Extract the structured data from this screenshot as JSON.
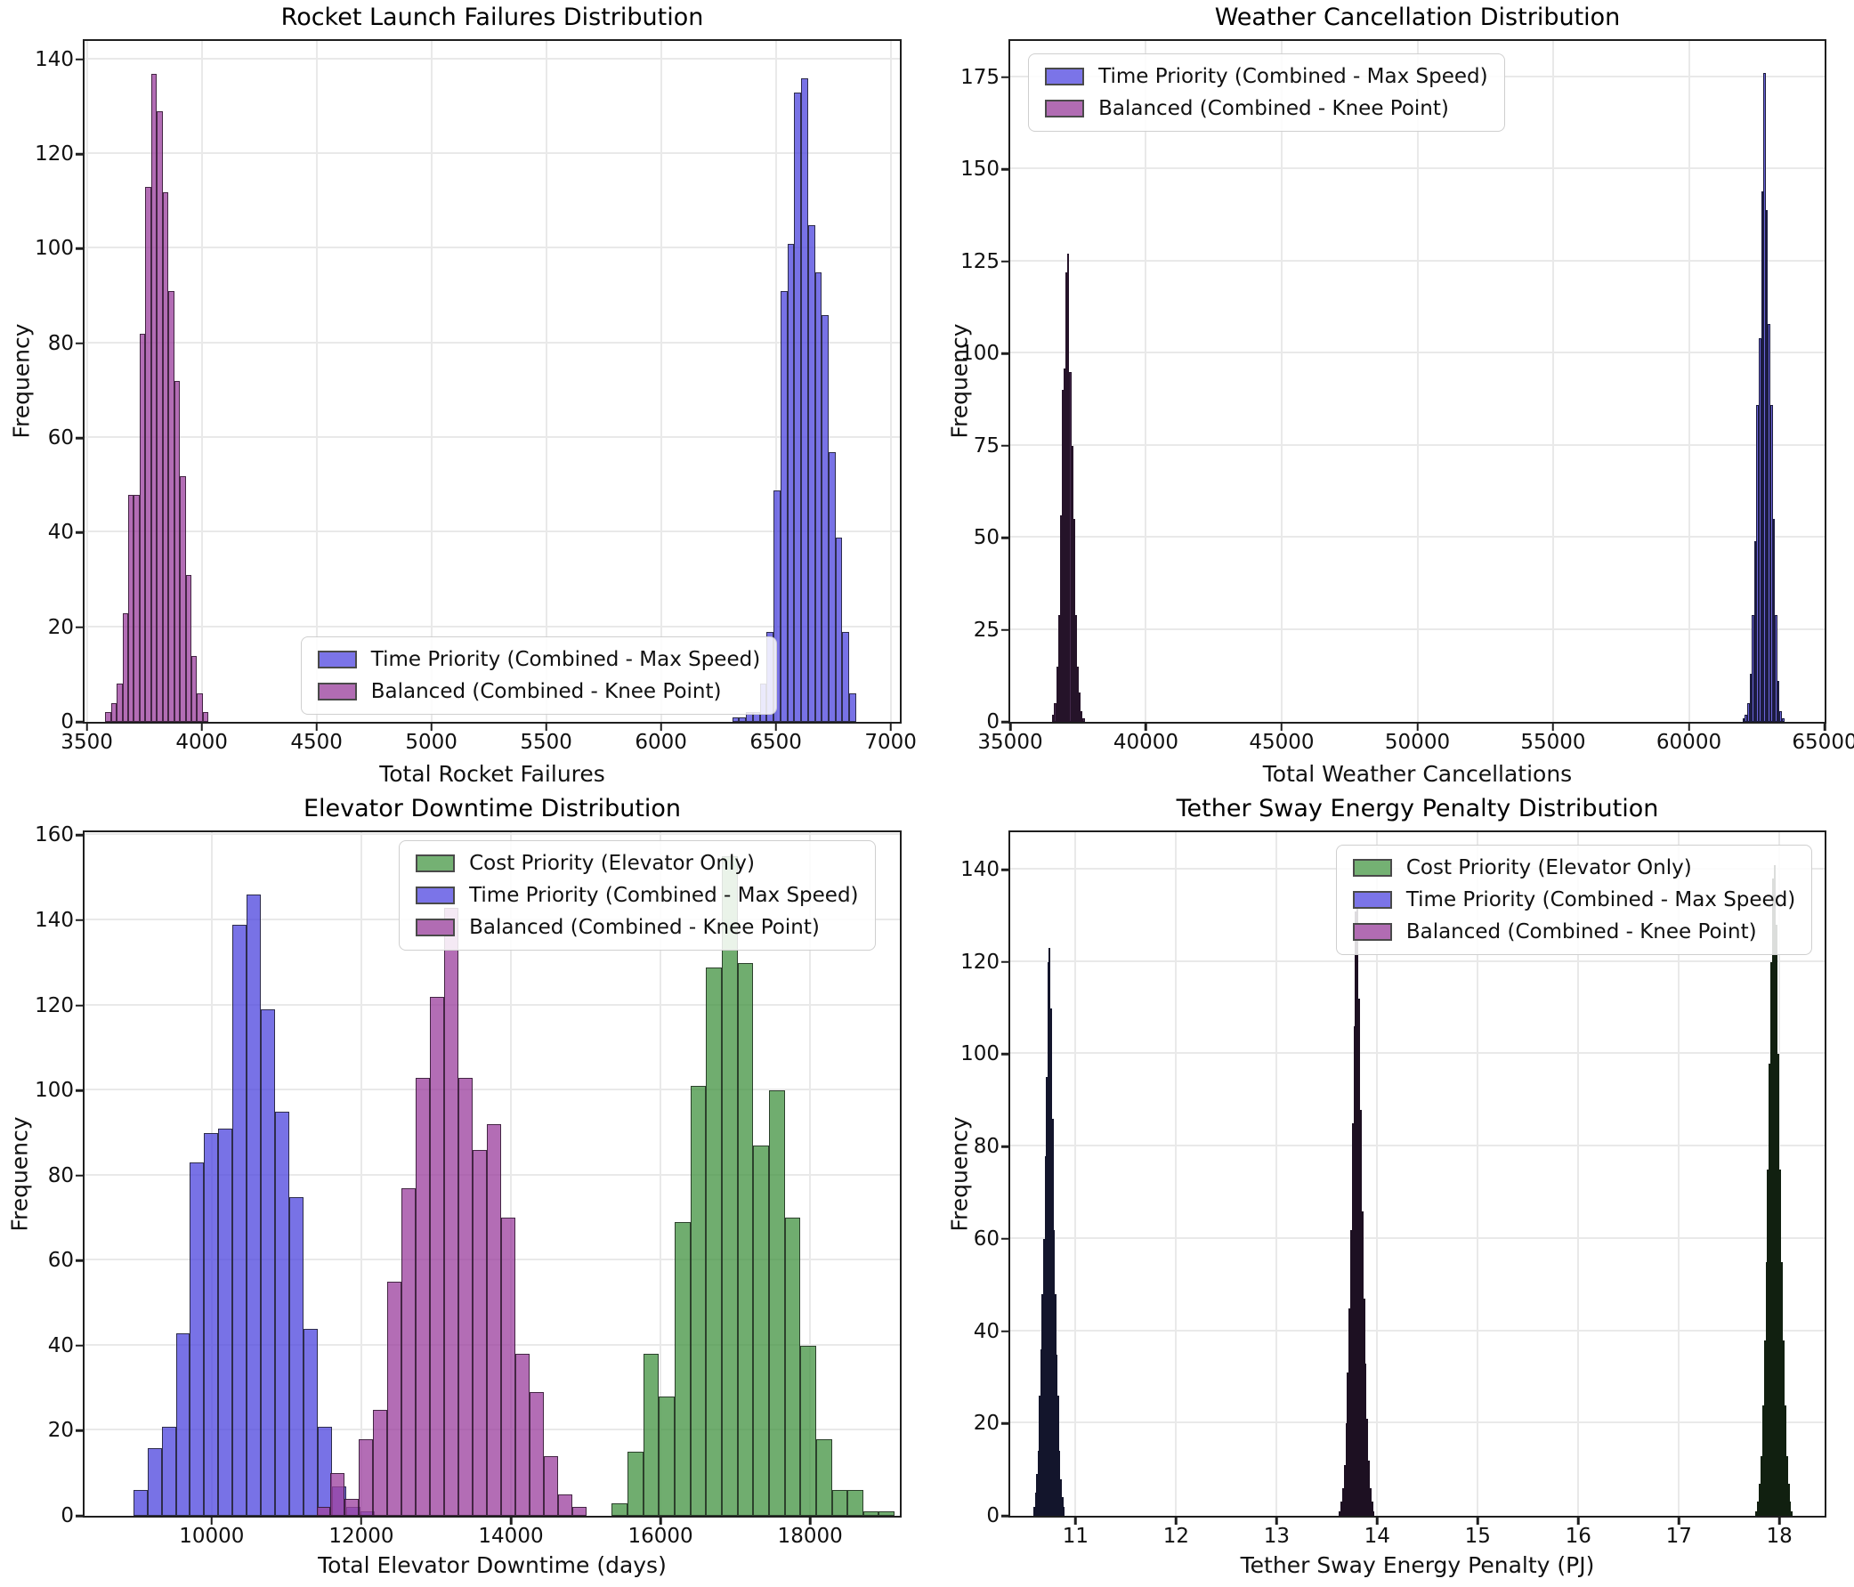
{
  "figure": {
    "background": "#ffffff"
  },
  "palette": {
    "blue": "#7b74e8",
    "purple": "#b16cb3",
    "green": "#74b173"
  },
  "chart_data": [
    {
      "type": "bar",
      "subtype": "histogram",
      "title": "Rocket Launch Failures Distribution",
      "xlabel": "Total Rocket Failures",
      "ylabel": "Frequency",
      "xlim": [
        3490,
        7040
      ],
      "ylim": [
        0,
        143.9
      ],
      "xticks": [
        3500,
        4000,
        4500,
        5000,
        5500,
        6000,
        6500,
        7000
      ],
      "yticks": [
        0,
        20,
        40,
        60,
        80,
        100,
        120,
        140
      ],
      "grid": true,
      "legend": {
        "pos": {
          "left": "26.5%",
          "bottom": "1%"
        },
        "items": [
          {
            "label": "Time Priority (Combined - Max Speed)",
            "fill": "#7b74e8"
          },
          {
            "label": "Balanced (Combined - Knee Point)",
            "fill": "#b16cb3"
          }
        ]
      },
      "series": [
        {
          "name": "Time Priority (Combined - Max Speed)",
          "fill": "rgba(82,74,223,0.78)",
          "edge": "rgba(28,28,38,0.8)",
          "bin_start": 6310,
          "bin_width": 30,
          "values": [
            1,
            1,
            2,
            2,
            8,
            19,
            49,
            91,
            101,
            133,
            136,
            105,
            95,
            86,
            57,
            39,
            19,
            6
          ]
        },
        {
          "name": "Balanced (Combined - Knee Point)",
          "fill": "rgba(158,68,160,0.78)",
          "edge": "rgba(40,20,40,0.8)",
          "bin_start": 3580,
          "bin_width": 25,
          "values": [
            2,
            4,
            8,
            23,
            48,
            48,
            82,
            113,
            137,
            129,
            112,
            91,
            72,
            52,
            31,
            14,
            6,
            2
          ]
        }
      ]
    },
    {
      "type": "bar",
      "subtype": "histogram",
      "title": "Weather Cancellation Distribution",
      "xlabel": "Total Weather Cancellations",
      "ylabel": "Frequency",
      "xlim": [
        35000,
        65000
      ],
      "ylim": [
        0,
        184.8
      ],
      "xticks": [
        35000,
        40000,
        45000,
        50000,
        55000,
        60000,
        65000
      ],
      "yticks": [
        0,
        25,
        50,
        75,
        100,
        125,
        150,
        175
      ],
      "grid": true,
      "legend": {
        "pos": {
          "left": "2.2%",
          "top": "1.8%"
        },
        "items": [
          {
            "label": "Time Priority (Combined - Max Speed)",
            "fill": "#7b74e8"
          },
          {
            "label": "Balanced (Combined - Knee Point)",
            "fill": "#b16cb3"
          }
        ]
      },
      "series": [
        {
          "name": "Time Priority (Combined - Max Speed)",
          "fill": "#6b65da",
          "edge": "#1c1c3f",
          "bin_start": 61980,
          "bin_width": 85,
          "values": [
            1,
            2,
            5,
            13,
            29,
            49,
            86,
            104,
            144,
            176,
            139,
            108,
            86,
            55,
            29,
            11,
            3,
            1
          ]
        },
        {
          "name": "Balanced (Combined - Knee Point)",
          "fill": "#43284a",
          "edge": "#251329",
          "bin_start": 36550,
          "bin_width": 70,
          "values": [
            2,
            5,
            15,
            29,
            56,
            90,
            96,
            122,
            127,
            95,
            75,
            55,
            29,
            15,
            8,
            3,
            1
          ]
        }
      ]
    },
    {
      "type": "bar",
      "subtype": "histogram",
      "title": "Elevator Downtime Distribution",
      "xlabel": "Total Elevator Downtime (days)",
      "ylabel": "Frequency",
      "xlim": [
        8300,
        19200
      ],
      "ylim": [
        0,
        160.7
      ],
      "xticks": [
        10000,
        12000,
        14000,
        16000,
        18000
      ],
      "yticks": [
        0,
        20,
        40,
        60,
        80,
        100,
        120,
        140,
        160
      ],
      "grid": true,
      "legend": {
        "pos": {
          "right": "3%",
          "top": "1.2%"
        },
        "items": [
          {
            "label": "Cost Priority (Elevator Only)",
            "fill": "#74b173"
          },
          {
            "label": "Time Priority (Combined - Max Speed)",
            "fill": "#7b74e8"
          },
          {
            "label": "Balanced (Combined - Knee Point)",
            "fill": "#b16cb3"
          }
        ]
      },
      "series": [
        {
          "name": "Time Priority (Combined - Max Speed)",
          "fill": "rgba(82,74,223,0.78)",
          "edge": "rgba(28,28,38,0.8)",
          "bin_start": 8950,
          "bin_width": 190,
          "values": [
            6,
            16,
            21,
            43,
            83,
            90,
            91,
            139,
            146,
            119,
            95,
            75,
            44,
            21,
            7,
            2,
            1
          ]
        },
        {
          "name": "Balanced (Combined - Knee Point)",
          "fill": "rgba(158,68,160,0.78)",
          "edge": "rgba(40,20,40,0.8)",
          "bin_start": 11400,
          "bin_width": 190,
          "values": [
            2,
            10,
            4,
            18,
            25,
            55,
            77,
            103,
            122,
            143,
            103,
            86,
            92,
            70,
            38,
            29,
            14,
            5,
            2
          ]
        },
        {
          "name": "Cost Priority (Elevator Only)",
          "fill": "rgba(72,150,70,0.78)",
          "edge": "rgba(28,38,28,0.8)",
          "bin_start": 15350,
          "bin_width": 210,
          "values": [
            3,
            15,
            38,
            28,
            69,
            101,
            129,
            155,
            130,
            87,
            100,
            70,
            40,
            18,
            6,
            6,
            1,
            1
          ]
        }
      ]
    },
    {
      "type": "bar",
      "subtype": "histogram",
      "title": "Tether Sway Energy Penalty Distribution",
      "xlabel": "Tether Sway Energy Penalty (PJ)",
      "ylabel": "Frequency",
      "xlim": [
        10.35,
        18.45
      ],
      "ylim": [
        0,
        148.1
      ],
      "xticks": [
        11,
        12,
        13,
        14,
        15,
        16,
        17,
        18
      ],
      "yticks": [
        0,
        20,
        40,
        60,
        80,
        100,
        120,
        140
      ],
      "grid": true,
      "legend": {
        "pos": {
          "right": "1.5%",
          "top": "1.8%"
        },
        "items": [
          {
            "label": "Cost Priority (Elevator Only)",
            "fill": "#74b173"
          },
          {
            "label": "Time Priority (Combined - Max Speed)",
            "fill": "#7b74e8"
          },
          {
            "label": "Balanced (Combined - Knee Point)",
            "fill": "#b16cb3"
          }
        ]
      },
      "series": [
        {
          "name": "Time Priority (Combined - Max Speed)",
          "fill": "#252a52",
          "edge": "#13152c",
          "bin_start": 10.58,
          "bin_width": 0.014,
          "values": [
            2,
            5,
            9,
            14,
            26,
            36,
            48,
            60,
            78,
            95,
            120,
            123,
            110,
            86,
            62,
            48,
            35,
            26,
            14,
            8,
            4,
            2
          ]
        },
        {
          "name": "Balanced (Combined - Knee Point)",
          "fill": "#3b2240",
          "edge": "#1d1022",
          "bin_start": 13.62,
          "bin_width": 0.016,
          "values": [
            1,
            3,
            6,
            11,
            20,
            31,
            45,
            62,
            85,
            106,
            131,
            134,
            112,
            88,
            66,
            47,
            33,
            21,
            12,
            6,
            3,
            1
          ]
        },
        {
          "name": "Cost Priority (Elevator Only)",
          "fill": "#223a20",
          "edge": "#112010",
          "bin_start": 17.76,
          "bin_width": 0.017,
          "values": [
            1,
            3,
            7,
            13,
            24,
            38,
            55,
            75,
            98,
            120,
            138,
            141,
            128,
            100,
            75,
            55,
            38,
            24,
            13,
            7,
            3,
            1
          ]
        }
      ]
    }
  ]
}
